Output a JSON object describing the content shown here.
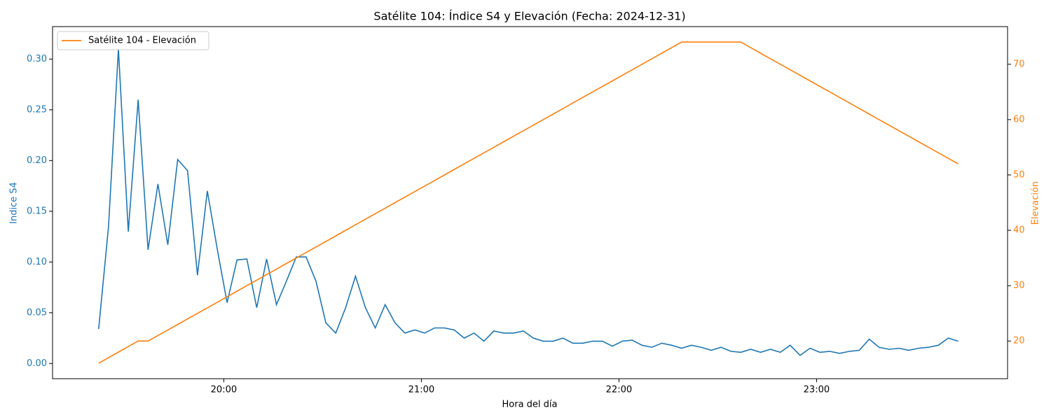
{
  "chart_data": {
    "type": "line",
    "title": "Satélite 104: Índice S4 y Elevación (Fecha: 2024-12-31)",
    "x_label": "Hora del día",
    "y_label": "Indice S4",
    "y2_label": "Elevación",
    "x": [
      "19:22",
      "19:25",
      "19:28",
      "19:31",
      "19:34",
      "19:37",
      "19:40",
      "19:43",
      "19:46",
      "19:49",
      "19:52",
      "19:55",
      "19:58",
      "20:01",
      "20:04",
      "20:07",
      "20:10",
      "20:13",
      "20:16",
      "20:19",
      "20:22",
      "20:25",
      "20:28",
      "20:31",
      "20:34",
      "20:37",
      "20:40",
      "20:43",
      "20:46",
      "20:49",
      "20:52",
      "20:55",
      "20:58",
      "21:01",
      "21:04",
      "21:07",
      "21:10",
      "21:13",
      "21:16",
      "21:19",
      "21:22",
      "21:25",
      "21:28",
      "21:31",
      "21:34",
      "21:37",
      "21:40",
      "21:43",
      "21:46",
      "21:49",
      "21:52",
      "21:55",
      "21:58",
      "22:01",
      "22:04",
      "22:07",
      "22:10",
      "22:13",
      "22:16",
      "22:19",
      "22:22",
      "22:25",
      "22:28",
      "22:31",
      "22:34",
      "22:37",
      "22:40",
      "22:43",
      "22:46",
      "22:49",
      "22:52",
      "22:55",
      "22:58",
      "23:01",
      "23:04",
      "23:07",
      "23:10",
      "23:13",
      "23:16",
      "23:19",
      "23:22",
      "23:25",
      "23:28",
      "23:31",
      "23:34",
      "23:37",
      "23:40",
      "23:43"
    ],
    "series": [
      {
        "color": "#1f77b4",
        "axis": "y",
        "values": [
          0.034,
          0.135,
          0.31,
          0.13,
          0.26,
          0.112,
          0.177,
          0.117,
          0.201,
          0.19,
          0.087,
          0.17,
          0.113,
          0.06,
          0.102,
          0.103,
          0.055,
          0.103,
          0.058,
          0.081,
          0.105,
          0.105,
          0.081,
          0.04,
          0.03,
          0.055,
          0.086,
          0.055,
          0.035,
          0.058,
          0.04,
          0.03,
          0.033,
          0.03,
          0.035,
          0.035,
          0.033,
          0.025,
          0.03,
          0.022,
          0.032,
          0.03,
          0.03,
          0.032,
          0.025,
          0.022,
          0.022,
          0.025,
          0.02,
          0.02,
          0.022,
          0.022,
          0.017,
          0.022,
          0.023,
          0.018,
          0.016,
          0.02,
          0.018,
          0.015,
          0.018,
          0.016,
          0.013,
          0.016,
          0.012,
          0.011,
          0.014,
          0.011,
          0.014,
          0.011,
          0.018,
          0.008,
          0.015,
          0.011,
          0.012,
          0.01,
          0.012,
          0.013,
          0.024,
          0.016,
          0.014,
          0.015,
          0.013,
          0.015,
          0.016,
          0.018,
          0.025,
          0.022
        ]
      },
      {
        "name": "Satélite 104 - Elevación",
        "color": "#ff7f0e",
        "axis": "y2",
        "values": [
          16,
          17,
          18,
          19,
          20,
          20,
          21,
          22,
          23,
          24,
          25,
          26,
          27,
          28,
          29,
          30,
          31,
          32,
          33,
          34,
          35,
          36,
          37,
          38,
          39,
          40,
          41,
          42,
          43,
          44,
          45,
          46,
          47,
          48,
          49,
          50,
          51,
          52,
          53,
          54,
          55,
          56,
          57,
          58,
          59,
          60,
          61,
          62,
          63,
          64,
          65,
          66,
          67,
          68,
          69,
          70,
          71,
          72,
          73,
          74,
          74,
          74,
          74,
          74,
          74,
          74,
          73,
          72,
          71,
          70,
          69,
          68,
          67,
          66,
          65,
          64,
          63,
          62,
          61,
          60,
          59,
          58,
          57,
          56,
          55,
          54,
          53,
          52
        ]
      }
    ],
    "xlim": [
      "19:08",
      "23:58"
    ],
    "xticks": [
      "20:00",
      "21:00",
      "22:00",
      "23:00"
    ],
    "ylim": [
      -0.015,
      0.332
    ],
    "yticks": [
      {
        "value": 0,
        "label": "0.00"
      },
      {
        "value": 0.05,
        "label": "0.05"
      },
      {
        "value": 0.1,
        "label": "0.10"
      },
      {
        "value": 0.15,
        "label": "0.15"
      },
      {
        "value": 0.2,
        "label": "0.20"
      },
      {
        "value": 0.25,
        "label": "0.25"
      },
      {
        "value": 0.3,
        "label": "0.30"
      }
    ],
    "y2lim": [
      13.2,
      76.8
    ],
    "y2ticks": [
      20,
      30,
      40,
      50,
      60,
      70
    ],
    "legend": "upper left",
    "grid": false
  }
}
